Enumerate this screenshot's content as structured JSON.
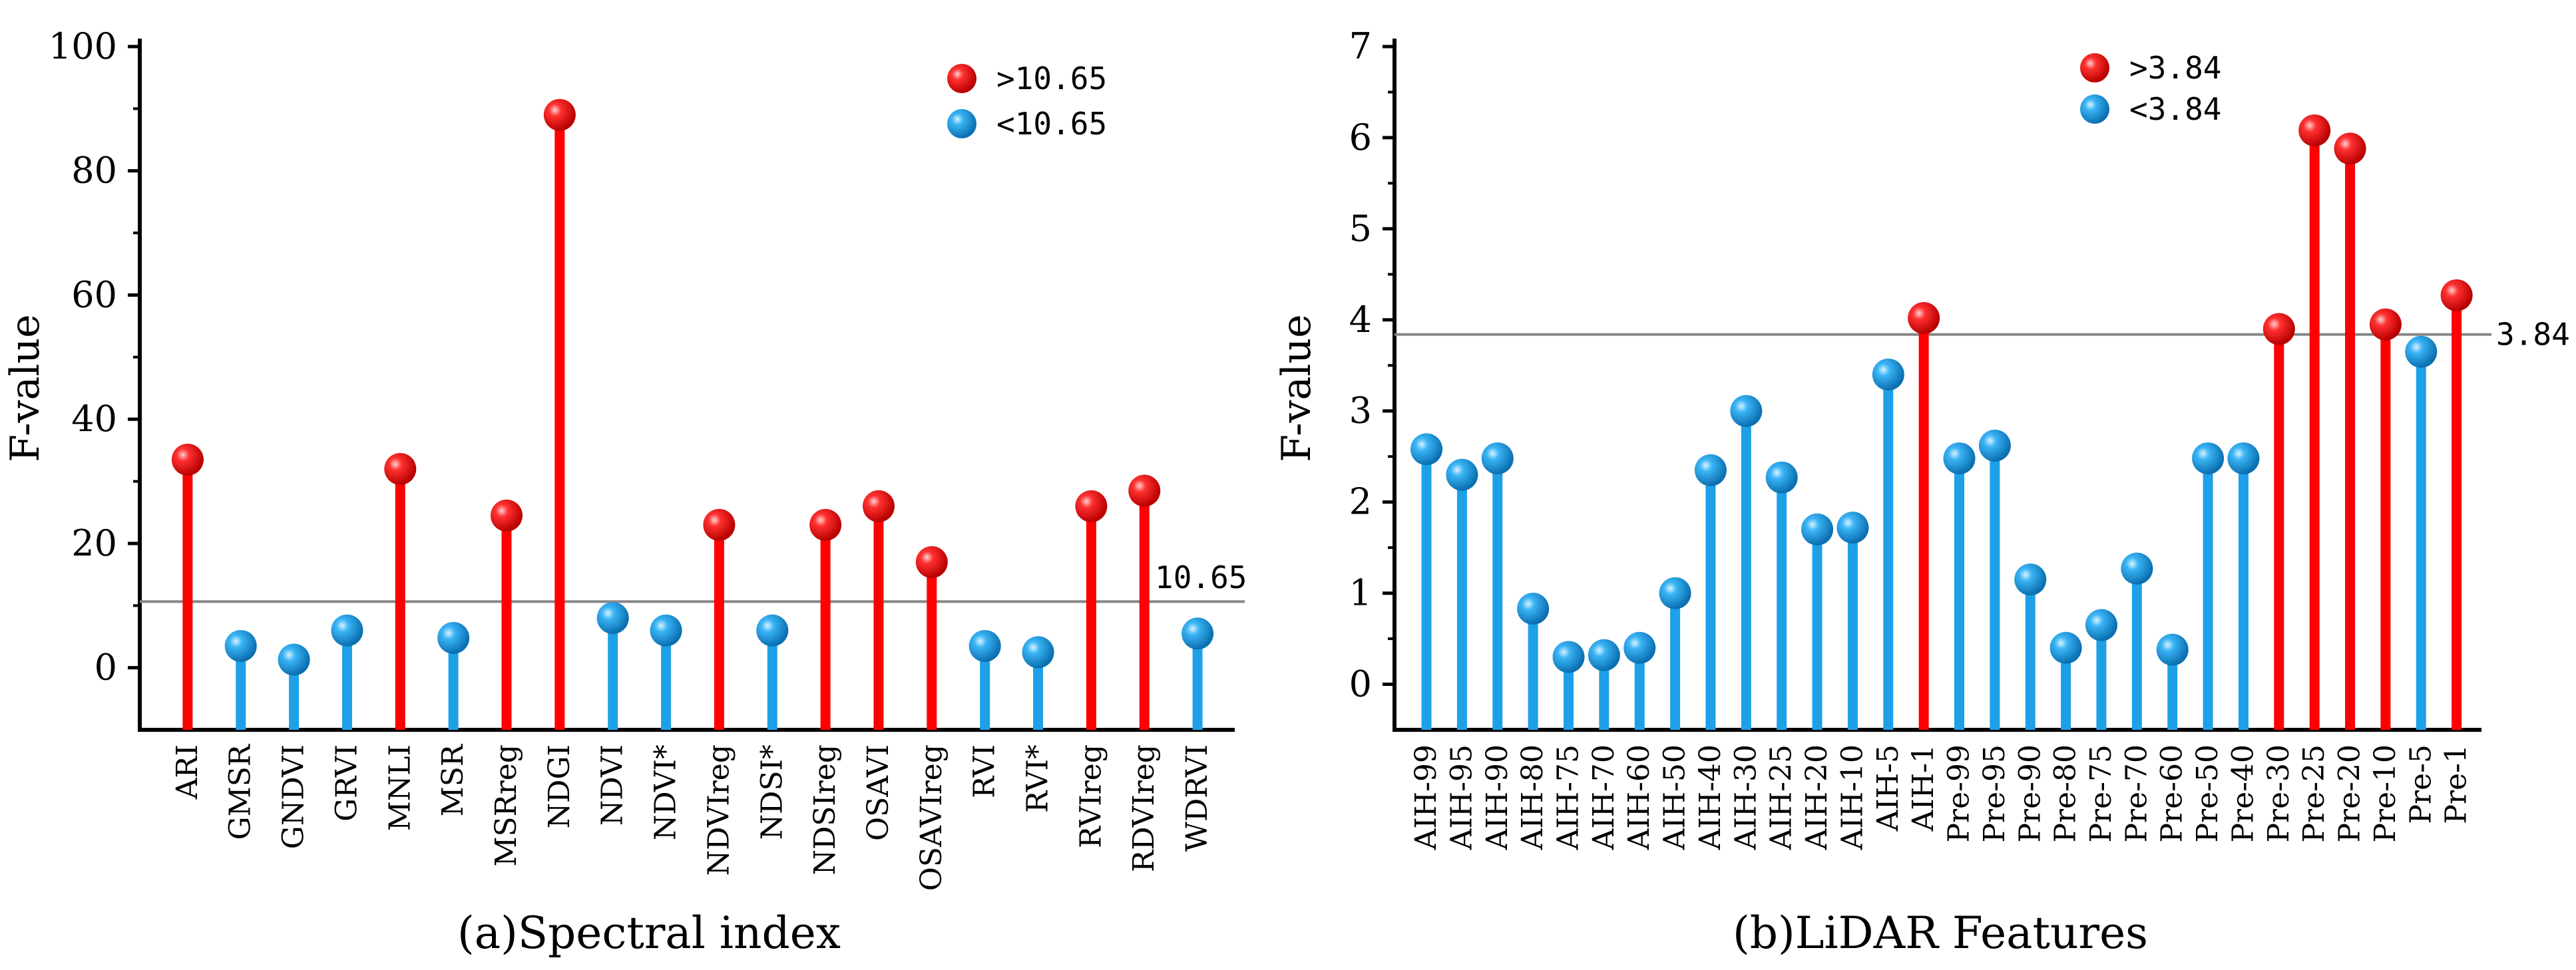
{
  "colors": {
    "high": "#ff0000",
    "low": "#1ea0e8",
    "threshold_line": "#888888"
  },
  "chart_data": [
    {
      "type": "lollipop",
      "ylabel": "F-value",
      "ylim": [
        -10,
        100
      ],
      "yticks": [
        0,
        20,
        40,
        60,
        80,
        100
      ],
      "threshold": 10.65,
      "threshold_label": "10.65",
      "legend": [
        {
          "key": "high",
          "label": ">10.65"
        },
        {
          "key": "low",
          "label": "<10.65"
        }
      ],
      "caption": "(a)Spectral index",
      "categories": [
        "ARI",
        "GMSR",
        "GNDVI",
        "GRVI",
        "MNLI",
        "MSR",
        "MSRreg",
        "NDGI",
        "NDVI",
        "NDVI*",
        "NDVIreg",
        "NDSI*",
        "NDSIreg",
        "OSAVI",
        "OSAVIreg",
        "RVI",
        "RVI*",
        "RVIreg",
        "RDVIreg",
        "WDRVI"
      ],
      "values": [
        33.5,
        3.5,
        1.3,
        6.0,
        32.0,
        4.8,
        24.5,
        89.0,
        8.0,
        6.0,
        23.0,
        6.0,
        23.0,
        26.0,
        17.0,
        3.5,
        2.5,
        26.0,
        28.5,
        5.5
      ]
    },
    {
      "type": "lollipop",
      "ylabel": "F-value",
      "ylim": [
        -0.5,
        7
      ],
      "yticks": [
        0,
        1,
        2,
        3,
        4,
        5,
        6,
        7
      ],
      "threshold": 3.84,
      "threshold_label": "3.84",
      "legend": [
        {
          "key": "high",
          "label": ">3.84"
        },
        {
          "key": "low",
          "label": "<3.84"
        }
      ],
      "caption": "(b)LiDAR Features",
      "categories": [
        "AIH-99",
        "AIH-95",
        "AIH-90",
        "AIH-80",
        "AIH-75",
        "AIH-70",
        "AIH-60",
        "AIH-50",
        "AIH-40",
        "AIH-30",
        "AIH-25",
        "AIH-20",
        "AIH-10",
        "AIH-5",
        "AIH-1",
        "Pre-99",
        "Pre-95",
        "Pre-90",
        "Pre-80",
        "Pre-75",
        "Pre-70",
        "Pre-60",
        "Pre-50",
        "Pre-40",
        "Pre-30",
        "Pre-25",
        "Pre-20",
        "Pre-10",
        "Pre-5",
        "Pre-1"
      ],
      "values": [
        2.58,
        2.3,
        2.48,
        0.83,
        0.3,
        0.32,
        0.4,
        1.0,
        2.35,
        3.0,
        2.27,
        1.7,
        1.72,
        3.4,
        4.02,
        2.48,
        2.62,
        1.15,
        0.4,
        0.65,
        1.27,
        0.38,
        2.48,
        2.48,
        3.9,
        6.08,
        5.88,
        3.95,
        3.65,
        4.27
      ]
    }
  ]
}
